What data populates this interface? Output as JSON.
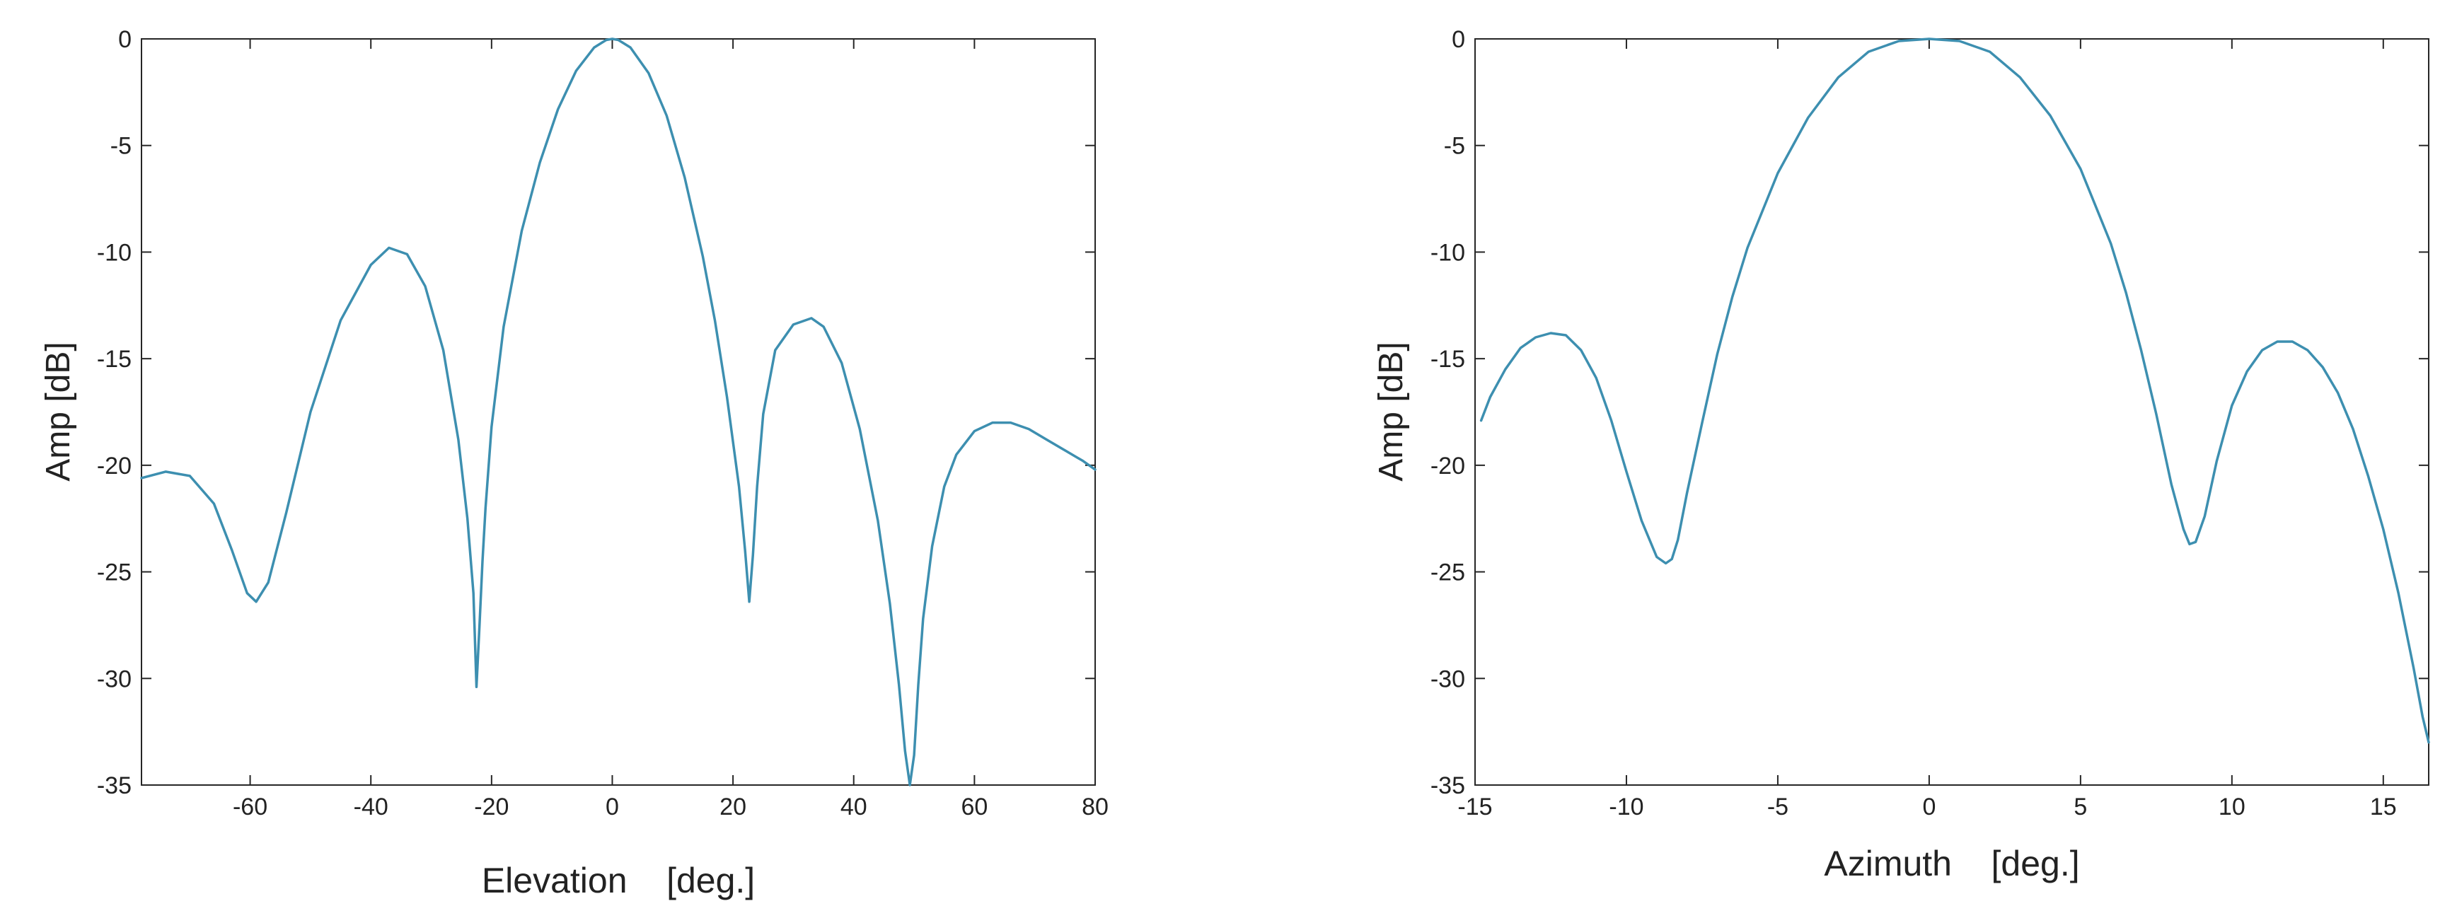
{
  "colors": {
    "line": "#3d8fb0",
    "axis": "#262626",
    "background": "#ffffff"
  },
  "chart_data": [
    {
      "type": "line",
      "title": "",
      "xlabel": "Elevation    [deg.]",
      "ylabel": "Amp [dB]",
      "xlim": [
        -78,
        80
      ],
      "ylim": [
        -35,
        0
      ],
      "xticks": [
        -60,
        -40,
        -20,
        0,
        20,
        40,
        60,
        80
      ],
      "yticks": [
        0,
        -5,
        -10,
        -15,
        -20,
        -25,
        -30,
        -35
      ],
      "grid": false,
      "series": [
        {
          "x": [
            -78,
            -74,
            -70,
            -66,
            -63,
            -60.5,
            -59,
            -57,
            -54,
            -50,
            -45,
            -40,
            -37,
            -34,
            -31,
            -28,
            -25.5,
            -24,
            -23,
            -22.5,
            -22,
            -21.5,
            -21,
            -20,
            -18,
            -15,
            -12,
            -9,
            -6,
            -3,
            -1,
            0,
            1,
            3,
            6,
            9,
            12,
            15,
            17,
            19,
            21,
            22,
            22.7,
            23.3,
            24,
            25,
            27,
            30,
            33,
            35,
            38,
            41,
            44,
            46,
            47.5,
            48.5,
            49.3,
            50,
            50.7,
            51.5,
            53,
            55,
            57,
            60,
            63,
            66,
            69,
            72,
            75,
            78,
            80
          ],
          "y": [
            -20.6,
            -20.3,
            -20.5,
            -21.8,
            -24.0,
            -26.0,
            -26.4,
            -25.5,
            -22.2,
            -17.5,
            -13.2,
            -10.6,
            -9.8,
            -10.1,
            -11.6,
            -14.6,
            -18.8,
            -22.5,
            -26.0,
            -30.4,
            -27.5,
            -24.5,
            -22.0,
            -18.2,
            -13.5,
            -9.0,
            -5.8,
            -3.3,
            -1.5,
            -0.4,
            -0.05,
            0,
            -0.05,
            -0.4,
            -1.6,
            -3.6,
            -6.5,
            -10.2,
            -13.2,
            -16.8,
            -21.0,
            -24.0,
            -26.4,
            -24.2,
            -21.0,
            -17.6,
            -14.6,
            -13.4,
            -13.1,
            -13.5,
            -15.2,
            -18.3,
            -22.6,
            -26.5,
            -30.3,
            -33.4,
            -35.5,
            -33.6,
            -30.3,
            -27.2,
            -23.8,
            -21.0,
            -19.5,
            -18.4,
            -18.0,
            -18.0,
            -18.3,
            -18.8,
            -19.3,
            -19.8,
            -20.2
          ]
        }
      ]
    },
    {
      "type": "line",
      "title": "",
      "xlabel": "Azimuth    [deg.]",
      "ylabel": "Amp [dB]",
      "xlim": [
        -15,
        16.5
      ],
      "ylim": [
        -35,
        0
      ],
      "xticks": [
        -15,
        -10,
        -5,
        0,
        5,
        10,
        15
      ],
      "yticks": [
        0,
        -5,
        -10,
        -15,
        -20,
        -25,
        -30,
        -35
      ],
      "grid": false,
      "series": [
        {
          "x": [
            -14.8,
            -14.5,
            -14,
            -13.5,
            -13,
            -12.5,
            -12,
            -11.5,
            -11,
            -10.5,
            -10,
            -9.5,
            -9,
            -8.7,
            -8.5,
            -8.3,
            -8,
            -7.5,
            -7,
            -6.5,
            -6,
            -5,
            -4,
            -3,
            -2,
            -1,
            0,
            1,
            2,
            3,
            4,
            5,
            6,
            6.5,
            7,
            7.5,
            8,
            8.4,
            8.6,
            8.8,
            9.1,
            9.5,
            10,
            10.5,
            11,
            11.5,
            12,
            12.5,
            13,
            13.5,
            14,
            14.5,
            15,
            15.5,
            16,
            16.3,
            16.5
          ],
          "y": [
            -17.9,
            -16.8,
            -15.5,
            -14.5,
            -14.0,
            -13.8,
            -13.9,
            -14.6,
            -15.9,
            -17.9,
            -20.3,
            -22.6,
            -24.3,
            -24.6,
            -24.4,
            -23.5,
            -21.3,
            -18.0,
            -14.8,
            -12.1,
            -9.8,
            -6.3,
            -3.7,
            -1.8,
            -0.6,
            -0.1,
            0,
            -0.1,
            -0.6,
            -1.8,
            -3.6,
            -6.1,
            -9.6,
            -11.9,
            -14.6,
            -17.6,
            -20.9,
            -23.0,
            -23.7,
            -23.6,
            -22.4,
            -19.8,
            -17.2,
            -15.6,
            -14.6,
            -14.2,
            -14.2,
            -14.6,
            -15.4,
            -16.6,
            -18.3,
            -20.5,
            -23.0,
            -26.0,
            -29.5,
            -31.8,
            -33.0
          ]
        }
      ]
    }
  ]
}
